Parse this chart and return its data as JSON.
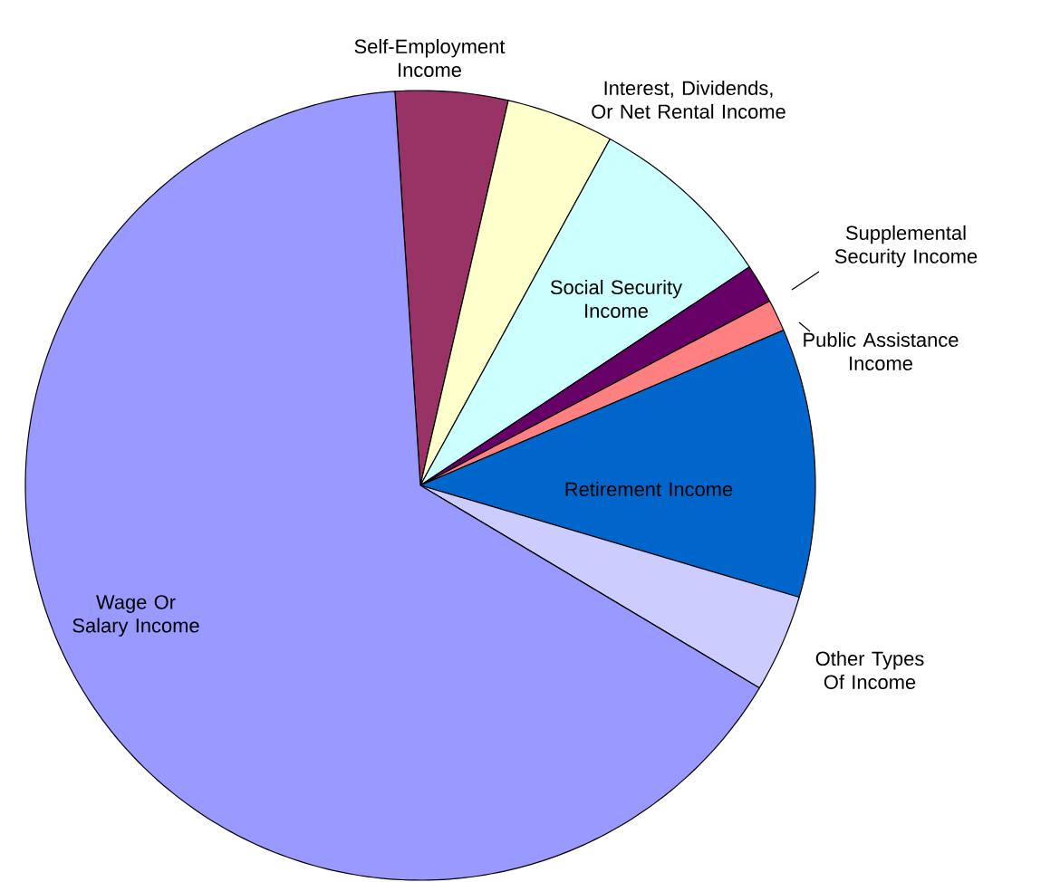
{
  "chart_data": {
    "type": "pie",
    "categories": [
      "Self-Employment Income",
      "Interest, Dividends, Or Net Rental Income",
      "Social Security Income",
      "Supplemental Security Income",
      "Public Assistance Income",
      "Retirement Income",
      "Other Types Of Income",
      "Wage Or Salary Income"
    ],
    "values": [
      4.6,
      4.4,
      7.7,
      1.6,
      1.3,
      11,
      4,
      65.4
    ],
    "colors": [
      "#993366",
      "#ffffcc",
      "#ccffff",
      "#660066",
      "#ff8080",
      "#0066cc",
      "#ccccff",
      "#9999ff"
    ]
  }
}
